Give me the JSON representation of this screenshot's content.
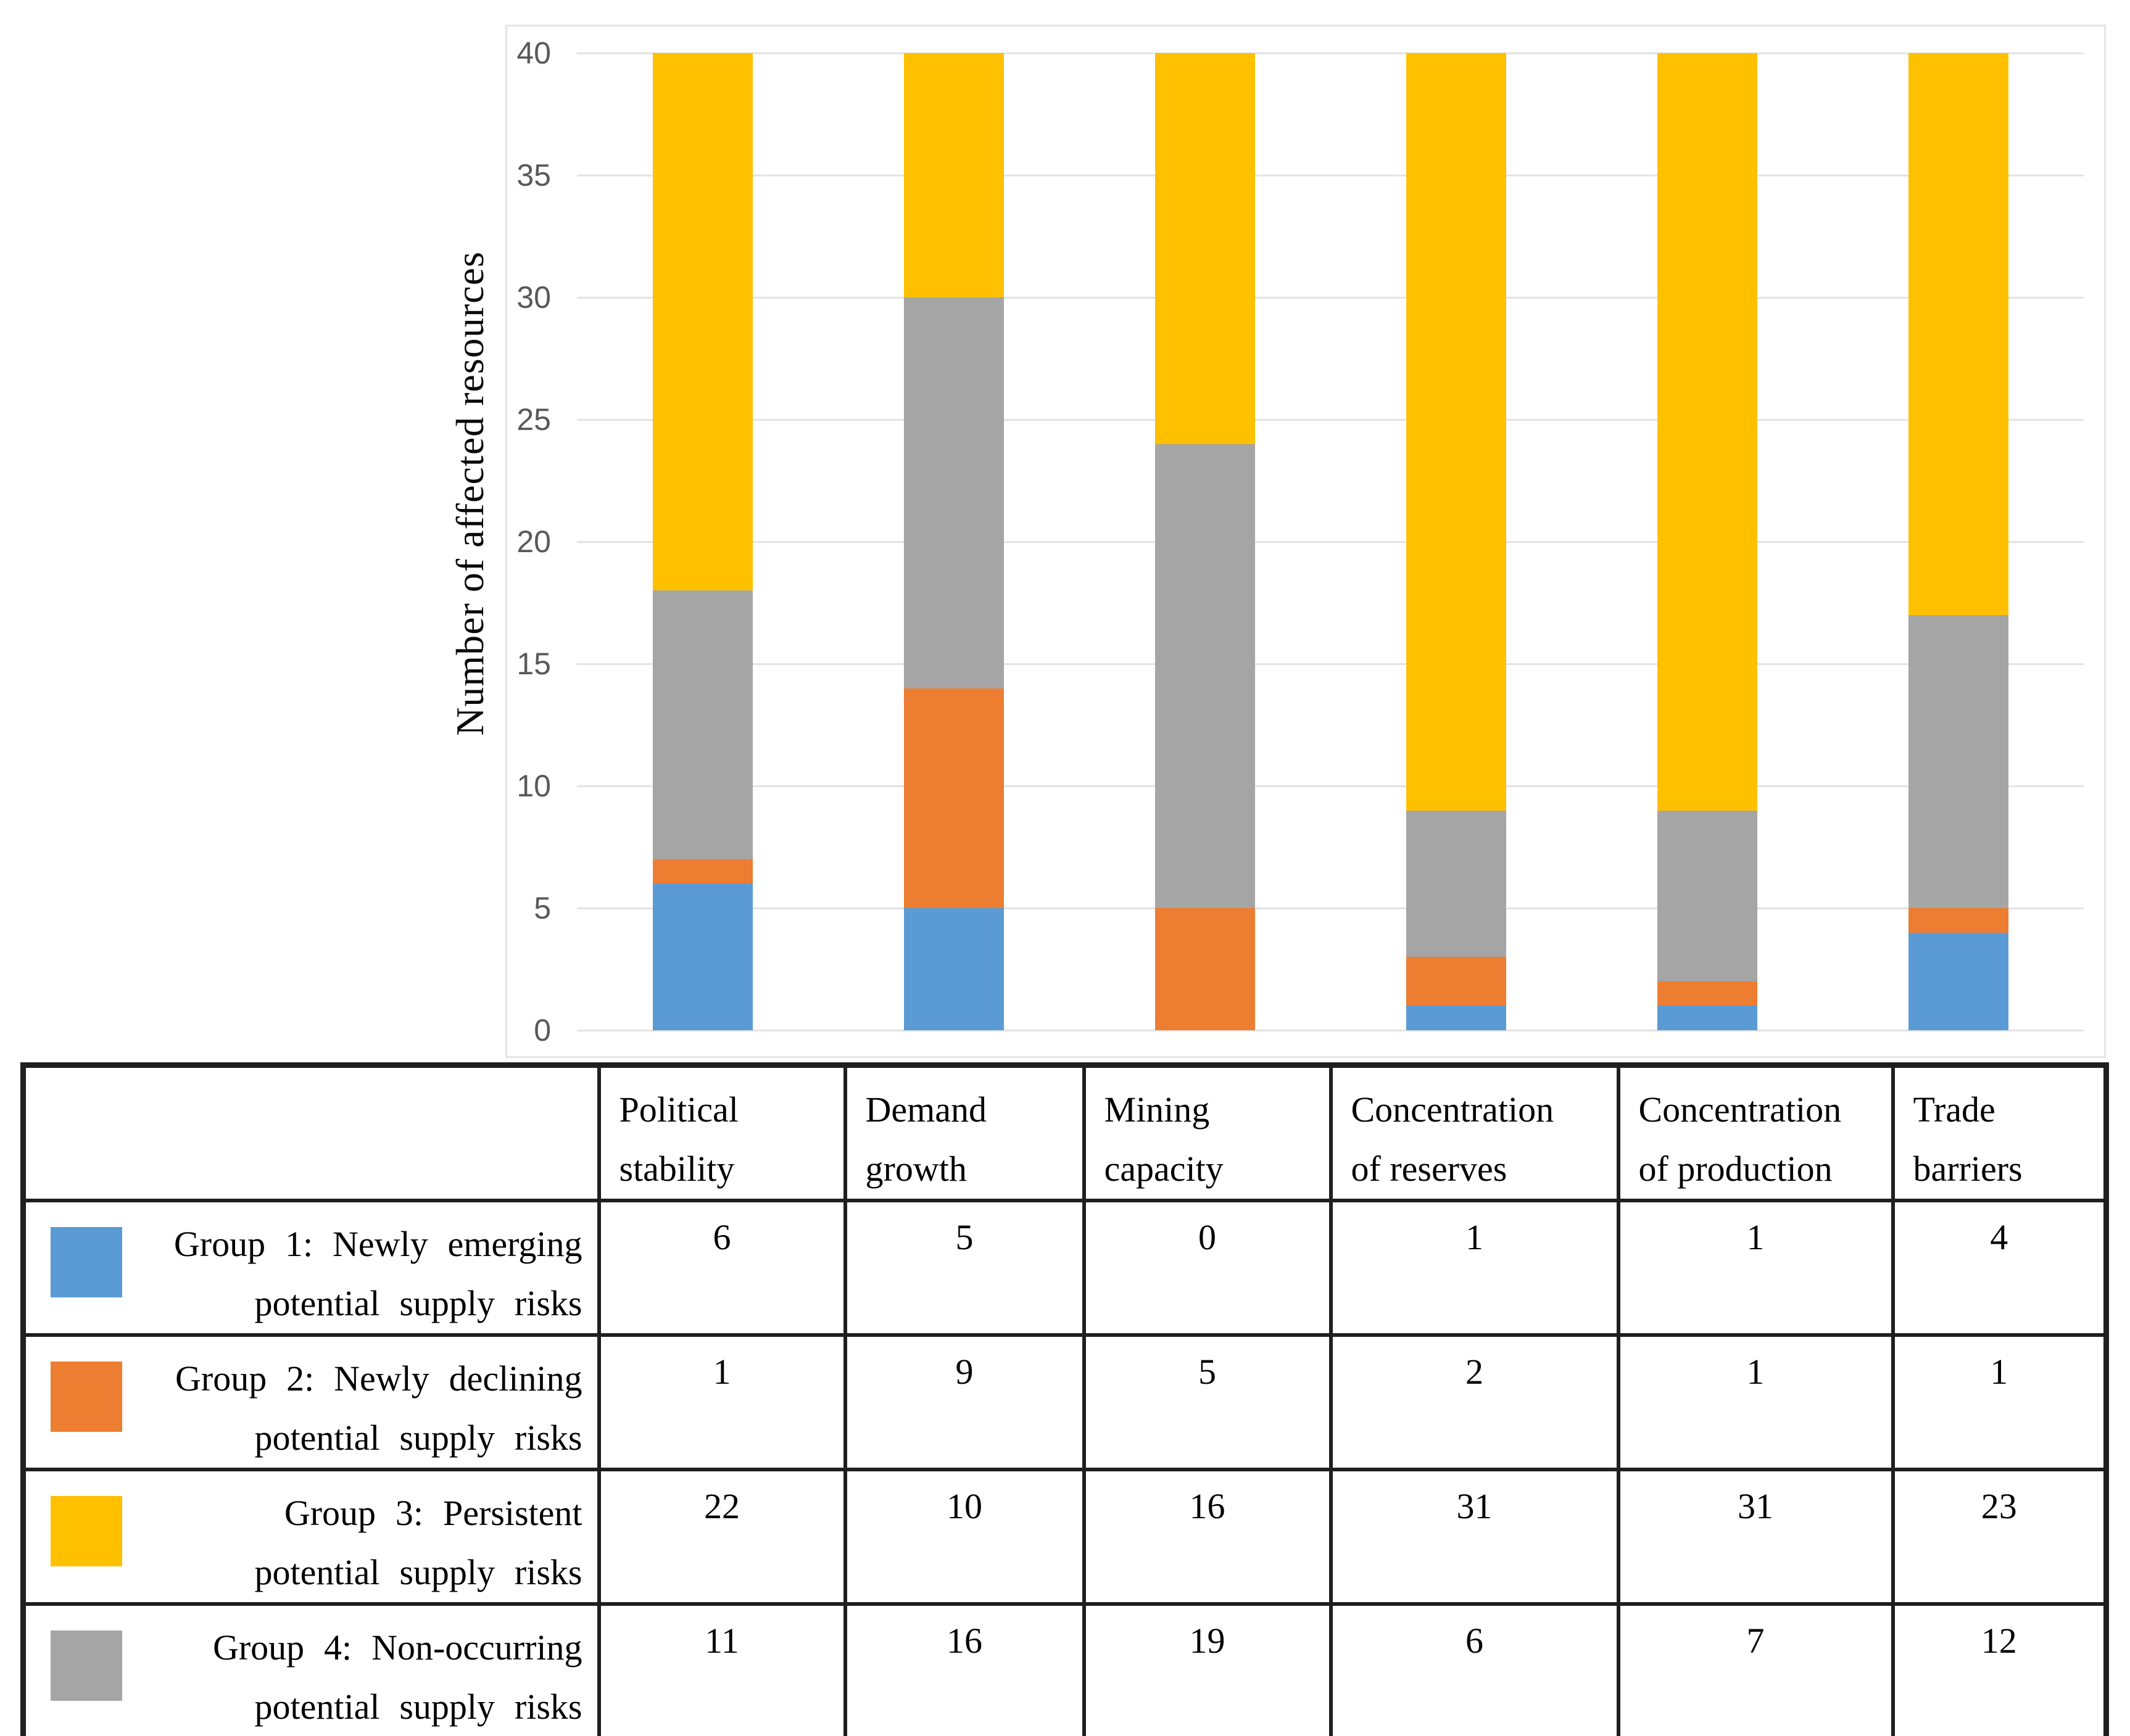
{
  "chart_data": {
    "type": "bar",
    "stacked": true,
    "title": "",
    "xlabel": "",
    "ylabel": "Number of affected resources",
    "ylim": [
      0,
      40
    ],
    "yticks": [
      0,
      5,
      10,
      15,
      20,
      25,
      30,
      35,
      40
    ],
    "grid": true,
    "legend_position": "table-below",
    "categories": [
      "Political stability",
      "Demand growth",
      "Mining capacity",
      "Concentration of reserves",
      "Concentration of production",
      "Trade barriers"
    ],
    "series": [
      {
        "name": "Group 1: Newly emerging potential supply risks",
        "color": "#5B9BD5",
        "values": [
          6,
          5,
          0,
          1,
          1,
          4
        ]
      },
      {
        "name": "Group 2: Newly declining potential supply risks",
        "color": "#ED7D31",
        "values": [
          1,
          9,
          5,
          2,
          1,
          1
        ]
      },
      {
        "name": "Group 3: Persistent potential supply risks",
        "color": "#FFC000",
        "values": [
          22,
          10,
          16,
          31,
          31,
          23
        ]
      },
      {
        "name": "Group 4: Non-occurring potential supply risks",
        "color": "#A5A5A5",
        "values": [
          11,
          16,
          19,
          6,
          7,
          12
        ]
      }
    ],
    "stack_order_bottom_to_top": [
      0,
      1,
      3,
      2
    ]
  },
  "table": {
    "corner_label": "",
    "headers": [
      {
        "line1": "Political",
        "line2": "stability"
      },
      {
        "line1": "Demand",
        "line2": "growth"
      },
      {
        "line1": "Mining",
        "line2": "capacity"
      },
      {
        "line1": "Concentration",
        "line2": "of reserves"
      },
      {
        "line1": "Concentration",
        "line2": "of production"
      },
      {
        "line1": "Trade",
        "line2": "barriers"
      }
    ],
    "rows": [
      {
        "swatch_color": "#5B9BD5",
        "line1": "Group 1: Newly emerging",
        "line2": "potential supply risks",
        "values": [
          6,
          5,
          0,
          1,
          1,
          4
        ]
      },
      {
        "swatch_color": "#ED7D31",
        "line1": "Group 2: Newly declining",
        "line2": "potential supply risks",
        "values": [
          1,
          9,
          5,
          2,
          1,
          1
        ]
      },
      {
        "swatch_color": "#FFC000",
        "line1": "Group 3: Persistent",
        "line2": "potential supply risks",
        "values": [
          22,
          10,
          16,
          31,
          31,
          23
        ]
      },
      {
        "swatch_color": "#A5A5A5",
        "line1": "Group 4: Non-occurring",
        "line2": "potential supply risks",
        "values": [
          11,
          16,
          19,
          6,
          7,
          12
        ]
      }
    ]
  }
}
